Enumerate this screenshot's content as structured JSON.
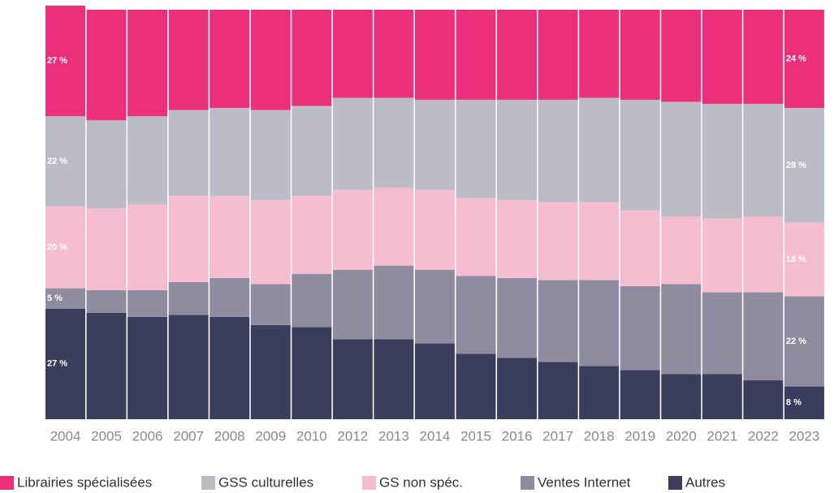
{
  "chart_data": {
    "type": "stacked_bar",
    "categories": [
      "2004",
      "2005",
      "2006",
      "2007",
      "2008",
      "2009",
      "2010",
      "2012",
      "2013",
      "2014",
      "2015",
      "2016",
      "2017",
      "2018",
      "2019",
      "2020",
      "2021",
      "2022",
      "2023"
    ],
    "ylim": [
      0,
      100
    ],
    "series": [
      {
        "name": "Librairies spécialisées",
        "color": "#ec2f7b",
        "values": [
          27,
          27,
          26,
          24.5,
          24,
          24.5,
          23.5,
          21.5,
          21.5,
          22,
          22,
          22,
          22,
          21.5,
          22,
          22.5,
          23,
          23,
          24
        ],
        "value_labels": [
          "27 %",
          null,
          null,
          null,
          null,
          null,
          null,
          null,
          null,
          null,
          null,
          null,
          null,
          null,
          null,
          null,
          null,
          null,
          "24 %"
        ]
      },
      {
        "name": "GSS culturelles",
        "color": "#bcbbc8",
        "values": [
          22,
          21.5,
          21.5,
          21,
          21.5,
          22,
          22,
          22.5,
          22,
          22,
          24,
          24.5,
          25,
          25.5,
          27,
          28,
          28,
          27.5,
          28
        ],
        "value_labels": [
          "22 %",
          null,
          null,
          null,
          null,
          null,
          null,
          null,
          null,
          null,
          null,
          null,
          null,
          null,
          null,
          null,
          null,
          null,
          "28 %"
        ]
      },
      {
        "name": "GS non spéc.",
        "color": "#f6bcd0",
        "values": [
          20,
          20,
          21,
          21,
          20,
          20.5,
          19,
          19.5,
          19,
          19.5,
          19,
          19,
          19,
          19,
          18.5,
          16.5,
          18,
          18.5,
          18
        ],
        "value_labels": [
          "20 %",
          null,
          null,
          null,
          null,
          null,
          null,
          null,
          null,
          null,
          null,
          null,
          null,
          null,
          null,
          null,
          null,
          null,
          "18 %"
        ]
      },
      {
        "name": "Ventes Internet",
        "color": "#8f8ca0",
        "values": [
          5,
          5.5,
          6.5,
          8,
          9.5,
          10,
          13,
          17,
          18,
          18,
          19,
          19.5,
          20,
          21,
          20.5,
          22,
          20,
          21.5,
          22
        ],
        "value_labels": [
          "5 %",
          null,
          null,
          null,
          null,
          null,
          null,
          null,
          null,
          null,
          null,
          null,
          null,
          null,
          null,
          null,
          null,
          null,
          "22 %"
        ]
      },
      {
        "name": "Autres",
        "color": "#3b3d5c",
        "values": [
          27,
          26,
          25,
          25.5,
          25,
          23,
          22.5,
          19.5,
          19.5,
          18.5,
          16,
          15,
          14,
          13,
          12,
          11,
          11,
          9.5,
          8
        ],
        "value_labels": [
          "27 %",
          null,
          null,
          null,
          null,
          null,
          null,
          null,
          null,
          null,
          null,
          null,
          null,
          null,
          null,
          null,
          null,
          null,
          "8 %"
        ]
      }
    ]
  }
}
